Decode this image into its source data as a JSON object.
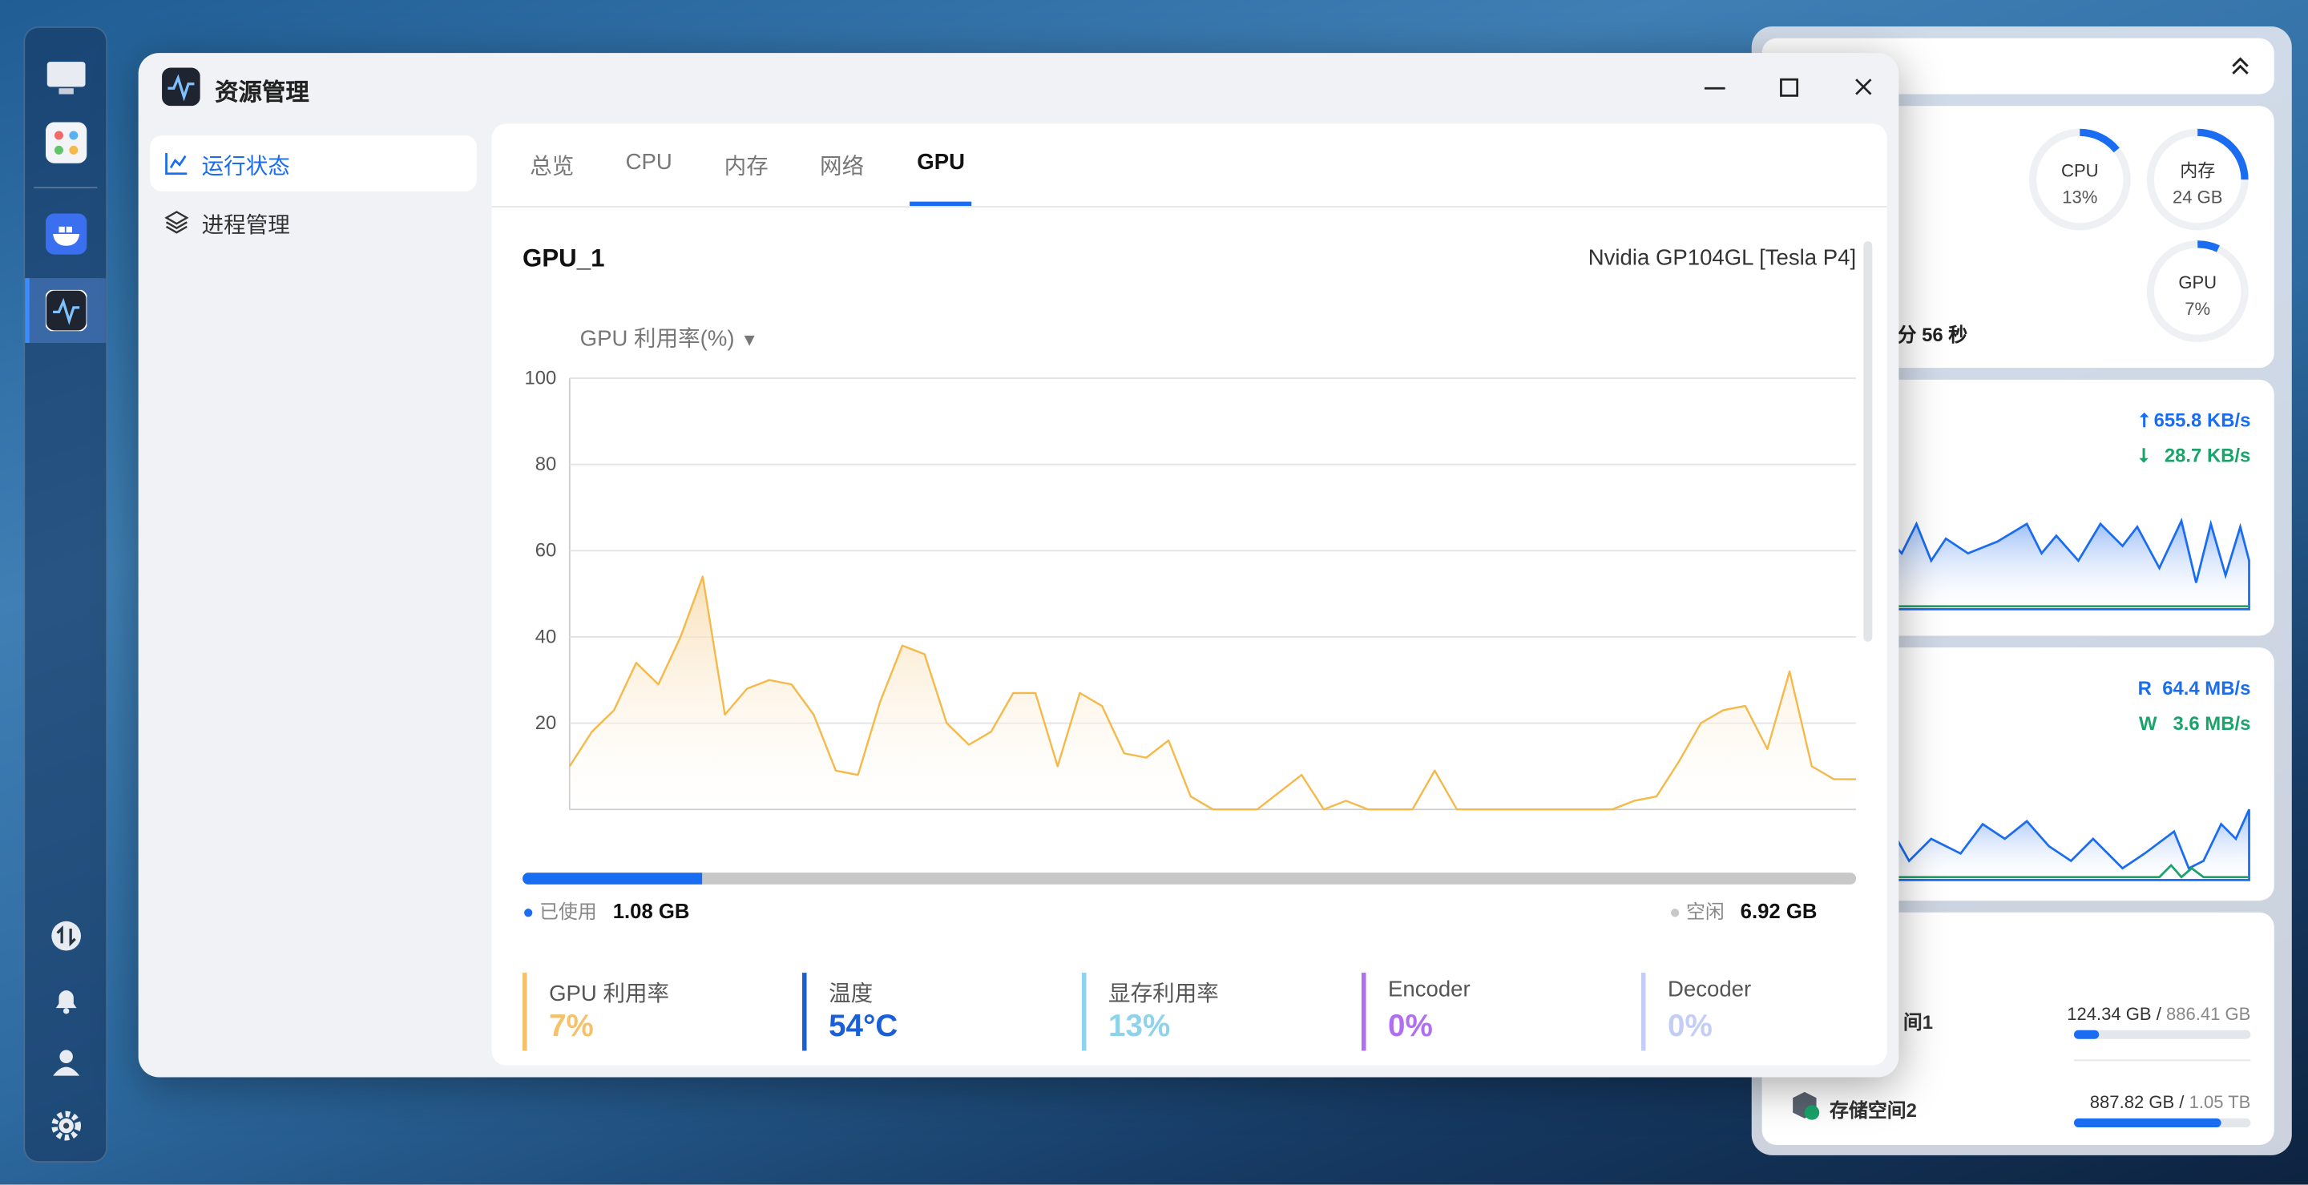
{
  "window": {
    "title": "资源管理"
  },
  "sidebar": {
    "items": [
      "运行状态",
      "进程管理"
    ]
  },
  "tabs": [
    "总览",
    "CPU",
    "内存",
    "网络",
    "GPU"
  ],
  "gpu": {
    "name": "GPU_1",
    "model": "Nvidia GP104GL [Tesla P4]",
    "metric_selector": "GPU 利用率(%)",
    "chart": {
      "type": "line",
      "color": "#f5b94a",
      "ylim": [
        0,
        100
      ],
      "yticks": [
        20,
        40,
        60,
        80,
        100
      ],
      "grid": true,
      "values": [
        10,
        18,
        23,
        34,
        29,
        40,
        54,
        22,
        28,
        30,
        29,
        22,
        9,
        8,
        25,
        38,
        36,
        20,
        15,
        18,
        27,
        27,
        10,
        27,
        24,
        13,
        12,
        16,
        3,
        0,
        0,
        0,
        4,
        8,
        0,
        2,
        0,
        0,
        0,
        9,
        0,
        0,
        0,
        0,
        0,
        0,
        0,
        0,
        2,
        3,
        11,
        20,
        23,
        24,
        14,
        32,
        10,
        7,
        7
      ]
    },
    "memory": {
      "used_label": "已使用",
      "used": {
        "value": 1.08,
        "label": "1.08 GB"
      },
      "free_label": "空闲",
      "free": {
        "value": 6.92,
        "label": "6.92 GB"
      }
    },
    "stats": [
      {
        "label": "GPU 利用率",
        "value": "7%",
        "color": "#f5c26b"
      },
      {
        "label": "温度",
        "value": "54°C",
        "color": "#1a5fd8"
      },
      {
        "label": "显存利用率",
        "value": "13%",
        "color": "#8fd3ea"
      },
      {
        "label": "Encoder",
        "value": "0%",
        "color": "#b06ef0"
      },
      {
        "label": "Decoder",
        "value": "0%",
        "color": "#c3cdf6"
      }
    ]
  },
  "widgets": {
    "gauges": [
      {
        "label": "CPU",
        "value": "13%"
      },
      {
        "label": "内存",
        "value": "24 GB"
      },
      {
        "label": "GPU",
        "value": "7%"
      }
    ],
    "uptime": "分 56 秒",
    "network": {
      "up": "655.8 KB/s",
      "down": "28.7 KB/s"
    },
    "disk": {
      "read_label": "R",
      "read": "64.4 MB/s",
      "write_label": "W",
      "write": "3.6 MB/s"
    },
    "storage": [
      {
        "name": "间1",
        "used": "124.34 GB",
        "total": "886.41 GB"
      },
      {
        "name": "存储空间2",
        "used": "887.82 GB",
        "total": "1.05 TB"
      }
    ]
  }
}
